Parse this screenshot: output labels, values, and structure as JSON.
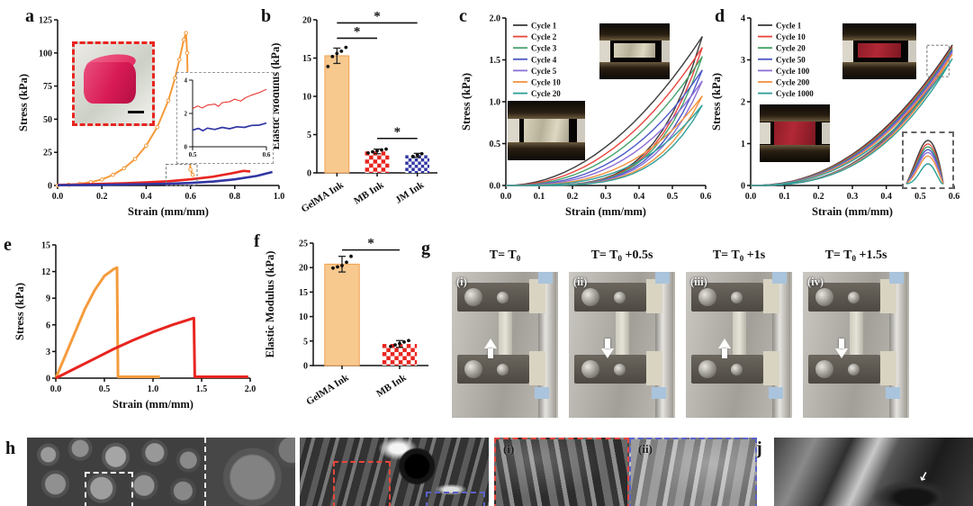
{
  "panels": {
    "a": {
      "label": "a"
    },
    "b": {
      "label": "b"
    },
    "c": {
      "label": "c"
    },
    "d": {
      "label": "d"
    },
    "e": {
      "label": "e"
    },
    "f": {
      "label": "f"
    },
    "g": {
      "label": "g",
      "frames": [
        {
          "tag": "(i)",
          "time_prefix": "T= T",
          "time_sub": "0",
          "time_suffix": "",
          "arrow": "up"
        },
        {
          "tag": "(ii)",
          "time_prefix": "T= T",
          "time_sub": "0",
          "time_suffix": " +0.5s",
          "arrow": "down"
        },
        {
          "tag": "(iii)",
          "time_prefix": "T= T",
          "time_sub": "0",
          "time_suffix": " +1s",
          "arrow": "up"
        },
        {
          "tag": "(iv)",
          "time_prefix": "T= T",
          "time_sub": "0",
          "time_suffix": " +1.5s",
          "arrow": "down"
        }
      ]
    },
    "h": {
      "label": "h"
    },
    "i": {
      "label": "i",
      "insets": [
        {
          "tag": "(i)"
        },
        {
          "tag": "(ii)"
        }
      ]
    },
    "j": {
      "label": "j"
    }
  },
  "chart_data": [
    {
      "id": "a",
      "type": "line",
      "panel": "a",
      "xlabel": "Strain (mm/mm)",
      "ylabel": "Stress (kPa)",
      "xlim": [
        0,
        1.0
      ],
      "ylim": [
        0,
        125
      ],
      "xticks": [
        0,
        0.2,
        0.4,
        0.6,
        0.8,
        1.0
      ],
      "yticks": [
        0,
        25,
        50,
        75,
        100,
        125
      ],
      "xtick_decimals": 1,
      "ytick_decimals": 0,
      "series": [
        {
          "name": "GelMA Ink",
          "color": "#f59b3c",
          "width": 2,
          "markers": true,
          "points": [
            [
              0,
              0
            ],
            [
              0.05,
              0.5
            ],
            [
              0.1,
              1.2
            ],
            [
              0.15,
              2.5
            ],
            [
              0.2,
              4.5
            ],
            [
              0.25,
              8
            ],
            [
              0.3,
              13
            ],
            [
              0.35,
              20
            ],
            [
              0.4,
              30
            ],
            [
              0.45,
              44
            ],
            [
              0.5,
              64
            ],
            [
              0.53,
              81
            ],
            [
              0.55,
              95
            ],
            [
              0.57,
              110
            ],
            [
              0.58,
              115
            ],
            [
              0.585,
              100
            ],
            [
              0.59,
              60
            ],
            [
              0.6,
              12
            ],
            [
              0.61,
              8
            ]
          ]
        },
        {
          "name": "MB Ink",
          "color": "#e8251f",
          "width": 2.6,
          "points": [
            [
              0,
              0.4
            ],
            [
              0.1,
              0.8
            ],
            [
              0.2,
              1.2
            ],
            [
              0.3,
              1.7
            ],
            [
              0.4,
              2.3
            ],
            [
              0.5,
              3.2
            ],
            [
              0.6,
              4.6
            ],
            [
              0.7,
              6.6
            ],
            [
              0.78,
              9
            ],
            [
              0.84,
              11
            ],
            [
              0.87,
              10.6
            ]
          ]
        },
        {
          "name": "JM Ink",
          "color": "#3136a3",
          "width": 2.6,
          "points": [
            [
              0,
              0.2
            ],
            [
              0.2,
              0.5
            ],
            [
              0.4,
              1.0
            ],
            [
              0.5,
              1.3
            ],
            [
              0.6,
              1.9
            ],
            [
              0.7,
              2.9
            ],
            [
              0.8,
              4.6
            ],
            [
              0.9,
              7.2
            ],
            [
              0.95,
              9.3
            ],
            [
              0.97,
              10.2
            ]
          ]
        }
      ],
      "zoom_box": {
        "x1": 0.49,
        "y1": 0,
        "x2": 0.63,
        "y2": 16
      }
    },
    {
      "id": "a_inset",
      "type": "line",
      "panel": "a",
      "small": true,
      "xlim": [
        0.5,
        0.6
      ],
      "ylim": [
        0,
        4
      ],
      "xticks": [
        0.5,
        0.6
      ],
      "yticks": [
        0,
        2,
        4
      ],
      "xtick_decimals": 1,
      "ytick_decimals": 0,
      "series": [
        {
          "name": "MB Ink",
          "color": "#e8251f",
          "width": 1,
          "points": [
            [
              0.5,
              2.3
            ],
            [
              0.507,
              2.45
            ],
            [
              0.513,
              2.33
            ],
            [
              0.52,
              2.5
            ],
            [
              0.53,
              2.56
            ],
            [
              0.535,
              2.42
            ],
            [
              0.54,
              2.65
            ],
            [
              0.55,
              2.7
            ],
            [
              0.557,
              2.86
            ],
            [
              0.565,
              2.74
            ],
            [
              0.572,
              2.95
            ],
            [
              0.58,
              3.1
            ],
            [
              0.59,
              3.25
            ],
            [
              0.6,
              3.45
            ]
          ]
        },
        {
          "name": "JM Ink",
          "color": "#3136a3",
          "width": 1.7,
          "points": [
            [
              0.5,
              1.0
            ],
            [
              0.508,
              1.1
            ],
            [
              0.514,
              0.96
            ],
            [
              0.52,
              1.12
            ],
            [
              0.53,
              1.04
            ],
            [
              0.54,
              1.16
            ],
            [
              0.55,
              1.08
            ],
            [
              0.56,
              1.2
            ],
            [
              0.57,
              1.16
            ],
            [
              0.58,
              1.28
            ],
            [
              0.59,
              1.3
            ],
            [
              0.6,
              1.42
            ]
          ]
        }
      ]
    },
    {
      "id": "b",
      "type": "bar",
      "panel": "b",
      "ylabel": "Elastic Modulus (kPa)",
      "ylim": [
        0,
        20
      ],
      "yticks": [
        0,
        5,
        10,
        15,
        20
      ],
      "ytick_decimals": 0,
      "categories": [
        "GelMA Ink",
        "MB Ink",
        "JM Ink"
      ],
      "values": [
        15.3,
        2.8,
        2.3
      ],
      "errors": [
        1.0,
        0.3,
        0.25
      ],
      "colors": [
        "#f8c98e",
        "#e8251f",
        "#3136a3"
      ],
      "edge_colors": [
        "#f0a050",
        "#e8251f",
        "#3136a3"
      ],
      "patterns": [
        {
          "kind": "solid"
        },
        {
          "kind": "checker",
          "cell": 4.5
        },
        {
          "kind": "checker",
          "cell": 3.5
        }
      ],
      "dots": [
        [
          13.9,
          15.2,
          15.6,
          15.9,
          16.4
        ],
        [
          2.6,
          2.75,
          2.9,
          3.0,
          3.1
        ],
        [
          2.15,
          2.35,
          2.5
        ]
      ],
      "sig": [
        {
          "a": 0,
          "b": 2,
          "y": 19.6,
          "label": "*"
        },
        {
          "a": 0,
          "b": 1,
          "y": 17.6,
          "label": "*"
        },
        {
          "a": 1,
          "b": 2,
          "y": 4.5,
          "label": "*"
        }
      ]
    },
    {
      "id": "c",
      "type": "loops",
      "panel": "c",
      "legend": true,
      "xlabel": "Strain (mm/mm)",
      "ylabel": "Stress (kPa)",
      "xlim": [
        0,
        0.6
      ],
      "ylim": [
        0,
        2.0
      ],
      "xticks": [
        0,
        0.1,
        0.2,
        0.3,
        0.4,
        0.5,
        0.6
      ],
      "yticks": [
        0,
        0.5,
        1.0,
        1.5,
        2.0
      ],
      "xtick_decimals": 1,
      "ytick_decimals": 1,
      "loop_xmax": 0.59,
      "load_exp": 2.0,
      "load_exp_step": 0.18,
      "unload_exp": 4.4,
      "series": [
        {
          "name": "Cycle 1",
          "color": "#3d3d3d",
          "peak": 1.78
        },
        {
          "name": "Cycle 2",
          "color": "#e8453c",
          "peak": 1.65
        },
        {
          "name": "Cycle 3",
          "color": "#46a36b",
          "peak": 1.54
        },
        {
          "name": "Cycle 4",
          "color": "#4d59c4",
          "peak": 1.38
        },
        {
          "name": "Cycle 5",
          "color": "#8d6fd6",
          "peak": 1.25
        },
        {
          "name": "Cycle 10",
          "color": "#f59140",
          "peak": 1.07
        },
        {
          "name": "Cycle 20",
          "color": "#2f9e99",
          "peak": 0.96
        }
      ]
    },
    {
      "id": "d",
      "type": "loops",
      "panel": "d",
      "legend": true,
      "xlabel": "Strain (mm/mm)",
      "ylabel": "Stress (kPa)",
      "xlim": [
        0,
        0.6
      ],
      "ylim": [
        0,
        4
      ],
      "xticks": [
        0,
        0.1,
        0.2,
        0.3,
        0.4,
        0.5,
        0.6
      ],
      "yticks": [
        0,
        1,
        2,
        3,
        4
      ],
      "xtick_decimals": 1,
      "ytick_decimals": 0,
      "loop_xmax": 0.595,
      "load_exp": 2.2,
      "load_exp_step": 0.03,
      "unload_exp": 2.7,
      "series": [
        {
          "name": "Cycle 1",
          "color": "#3d3d3d",
          "peak": 3.36
        },
        {
          "name": "Cycle 10",
          "color": "#e8453c",
          "peak": 3.31
        },
        {
          "name": "Cycle 20",
          "color": "#3f9e5f",
          "peak": 3.27
        },
        {
          "name": "Cycle 50",
          "color": "#4d59c4",
          "peak": 3.23
        },
        {
          "name": "Cycle 100",
          "color": "#8d6fd6",
          "peak": 3.19
        },
        {
          "name": "Cycle 200",
          "color": "#f59140",
          "peak": 3.14
        },
        {
          "name": "Cycle 1000",
          "color": "#2f9e99",
          "peak": 3.03
        }
      ],
      "zoom_box": {
        "x1": 0.52,
        "y1": 2.6,
        "x2": 0.585,
        "y2": 3.35
      }
    },
    {
      "id": "d_inset",
      "type": "peaks",
      "panel": "d",
      "no_axes": true,
      "peaks": [
        3.36,
        3.31,
        3.27,
        3.23,
        3.19,
        3.14,
        3.03
      ],
      "colors": [
        "#3d3d3d",
        "#e8453c",
        "#3f9e5f",
        "#4d59c4",
        "#8d6fd6",
        "#f59140",
        "#2f9e99"
      ]
    },
    {
      "id": "e",
      "type": "line",
      "panel": "e",
      "xlabel": "Strain (mm/mm)",
      "ylabel": "Stress (kPa)",
      "xlim": [
        0,
        2.0
      ],
      "ylim": [
        0,
        15
      ],
      "xticks": [
        0,
        0.5,
        1.0,
        1.5,
        2.0
      ],
      "yticks": [
        0,
        3,
        6,
        9,
        12,
        15
      ],
      "xtick_decimals": 1,
      "ytick_decimals": 0,
      "series": [
        {
          "name": "GelMA Ink",
          "color": "#f59b3c",
          "width": 3,
          "points": [
            [
              0,
              0
            ],
            [
              0.1,
              2.6
            ],
            [
              0.2,
              5.2
            ],
            [
              0.3,
              7.8
            ],
            [
              0.4,
              9.9
            ],
            [
              0.5,
              11.5
            ],
            [
              0.6,
              12.3
            ],
            [
              0.63,
              12.45
            ],
            [
              0.64,
              0.15
            ],
            [
              1.07,
              0.15
            ]
          ]
        },
        {
          "name": "MB Ink",
          "color": "#e8251f",
          "width": 3,
          "points": [
            [
              0,
              0
            ],
            [
              0.2,
              1.1
            ],
            [
              0.4,
              2.2
            ],
            [
              0.6,
              3.3
            ],
            [
              0.8,
              4.3
            ],
            [
              1.0,
              5.2
            ],
            [
              1.2,
              6.0
            ],
            [
              1.4,
              6.7
            ],
            [
              1.42,
              6.75
            ],
            [
              1.43,
              0.15
            ],
            [
              1.98,
              0.15
            ]
          ]
        }
      ]
    },
    {
      "id": "f",
      "type": "bar",
      "panel": "f",
      "ylabel": "Elastic Modulus (kPa)",
      "ylim": [
        0,
        25
      ],
      "yticks": [
        0,
        5,
        10,
        15,
        20,
        25
      ],
      "ytick_decimals": 0,
      "categories": [
        "GelMA Ink",
        "MB Ink"
      ],
      "values": [
        20.7,
        4.4
      ],
      "errors": [
        1.6,
        0.7
      ],
      "colors": [
        "#f8c98e",
        "#e8251f"
      ],
      "edge_colors": [
        "#f0a050",
        "#e8251f"
      ],
      "patterns": [
        {
          "kind": "solid"
        },
        {
          "kind": "checker",
          "cell": 4.5
        }
      ],
      "dots": [
        [
          19.9,
          20.15,
          20.4,
          21.1,
          22.3
        ],
        [
          3.9,
          4.2,
          4.5,
          4.8,
          5.1
        ]
      ],
      "sig": [
        {
          "a": 0,
          "b": 1,
          "y": 23.6,
          "label": "*"
        }
      ]
    }
  ]
}
